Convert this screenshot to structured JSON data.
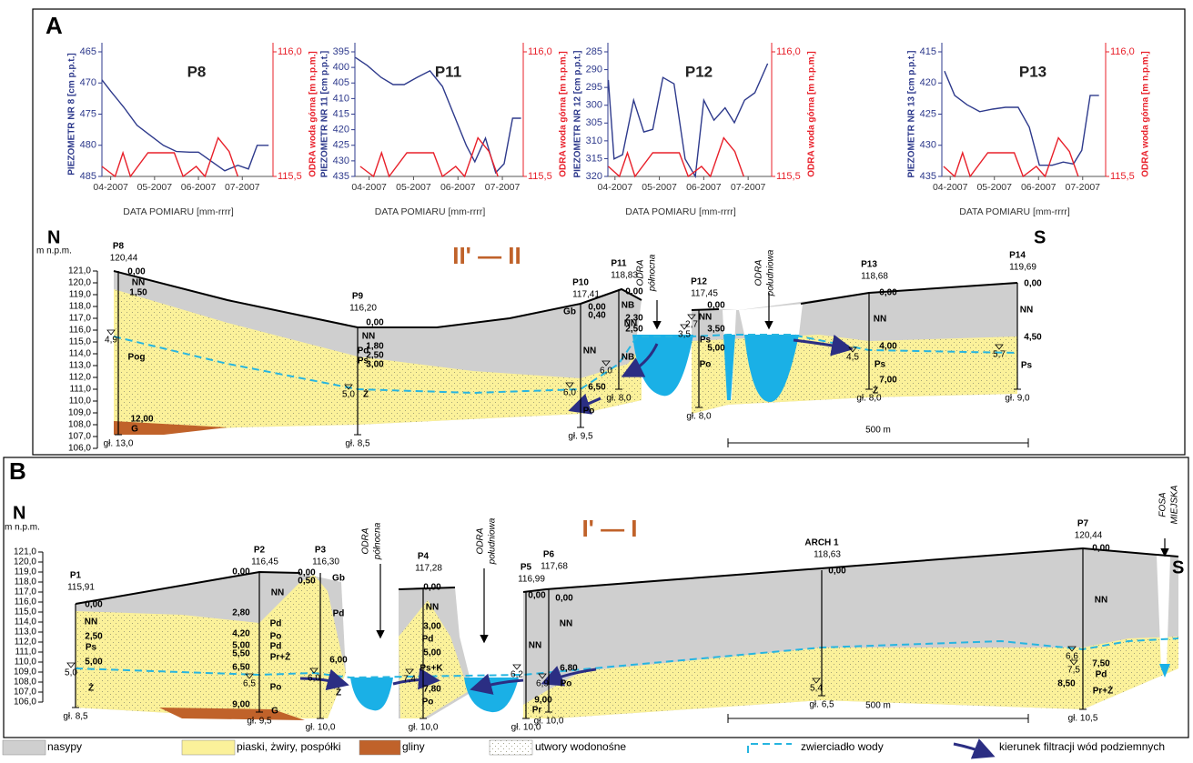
{
  "chart_data": [
    {
      "type": "line",
      "title": "P8",
      "y_label": "PIEZOMETR NR 8 [cm p.p.t.]",
      "y2_label": "ODRA woda górna [m n.p.m.]",
      "x_label": "DATA POMIARU [mm-rrrr]",
      "xlim": [
        -0.2,
        3.7
      ],
      "xticks": [
        {
          "value": 0,
          "label": "04-2007"
        },
        {
          "value": 1,
          "label": "05-2007"
        },
        {
          "value": 2,
          "label": "06-2007"
        },
        {
          "value": 3,
          "label": "07-2007"
        }
      ],
      "ylim": [
        465,
        485
      ],
      "y_inverted": true,
      "yticks": [
        465,
        470,
        475,
        480,
        485
      ],
      "y2lim": [
        115.5,
        116.0
      ],
      "y2ticks": [
        {
          "value": 116.0,
          "label": "116,0"
        },
        {
          "value": 115.5,
          "label": "115,5"
        }
      ],
      "series": [
        {
          "color": "#2e3a8c",
          "x": [
            -0.2,
            0,
            0.3,
            0.6,
            0.9,
            1.2,
            1.5,
            1.8,
            2.0,
            2.3,
            2.6,
            2.9,
            3.14,
            3.34,
            3.6
          ],
          "values": [
            469.5,
            471.3,
            473.9,
            476.8,
            478.4,
            480,
            481,
            481.1,
            481.1,
            482.6,
            484.1,
            483.2,
            483.8,
            480,
            480
          ]
        },
        {
          "color": "#e8202a",
          "axis": "y2",
          "x": [
            -0.2,
            0.1,
            0.28,
            0.45,
            0.85,
            1.45,
            1.65,
            1.95,
            2.15,
            2.45,
            2.7,
            2.9
          ],
          "values": [
            115.54,
            115.5,
            115.595,
            115.5,
            115.595,
            115.595,
            115.5,
            115.54,
            115.5,
            115.655,
            115.6,
            115.5
          ]
        }
      ]
    },
    {
      "type": "line",
      "title": "P11",
      "y_label": "PIEZOMETR NR 11 [cm p.p.t.]",
      "y2_label": "ODRA woda górna [m n.p.m.]",
      "x_label": "DATA POMIARU [mm-rrrr]",
      "xlim": [
        -0.32,
        3.47
      ],
      "xticks": [
        {
          "value": 0,
          "label": "04-2007"
        },
        {
          "value": 1,
          "label": "05-2007"
        },
        {
          "value": 2,
          "label": "06-2007"
        },
        {
          "value": 3,
          "label": "07-2007"
        }
      ],
      "ylim": [
        395,
        435
      ],
      "y_inverted": true,
      "yticks": [
        395,
        400,
        405,
        410,
        415,
        420,
        425,
        430,
        435
      ],
      "y2lim": [
        115.5,
        116.0
      ],
      "y2ticks": [
        {
          "value": 116.0,
          "label": "116,0"
        },
        {
          "value": 115.5,
          "label": "115,5"
        }
      ],
      "series": [
        {
          "color": "#2e3a8c",
          "x": [
            -0.31,
            -0.04,
            0.27,
            0.54,
            0.79,
            1.08,
            1.37,
            1.65,
            1.94,
            2.19,
            2.38,
            2.62,
            2.85,
            3.04,
            3.23,
            3.42
          ],
          "values": [
            396.8,
            399.4,
            403.2,
            405.5,
            405.5,
            403.2,
            401.1,
            406.1,
            416.3,
            425.1,
            430.3,
            422.7,
            433.8,
            430.9,
            416.3,
            416.3
          ]
        },
        {
          "color": "#e8202a",
          "axis": "y2",
          "x": [
            -0.2,
            0.1,
            0.28,
            0.45,
            0.85,
            1.45,
            1.65,
            1.95,
            2.15,
            2.45,
            2.7,
            2.9
          ],
          "values": [
            115.54,
            115.5,
            115.595,
            115.5,
            115.595,
            115.595,
            115.5,
            115.54,
            115.5,
            115.655,
            115.6,
            115.5
          ]
        }
      ]
    },
    {
      "type": "line",
      "title": "P12",
      "y_label": "PIEZOMETR NR 12 [cm p.p.t.]",
      "y2_label": "ODRA woda górna [m n.p.m.]",
      "x_label": "DATA POMIARU [mm-rrrr]",
      "xlim": [
        -0.16,
        3.53
      ],
      "xticks": [
        {
          "value": 0,
          "label": "04-2007"
        },
        {
          "value": 1,
          "label": "05-2007"
        },
        {
          "value": 2,
          "label": "06-2007"
        },
        {
          "value": 3,
          "label": "07-2007"
        }
      ],
      "ylim": [
        285,
        320
      ],
      "y_inverted": true,
      "yticks": [
        285,
        290,
        295,
        300,
        305,
        310,
        315,
        320
      ],
      "y2lim": [
        115.5,
        116.0
      ],
      "y2ticks": [
        {
          "value": 116.0,
          "label": "116,0"
        },
        {
          "value": 115.5,
          "label": "115,5"
        }
      ],
      "series": [
        {
          "color": "#2e3a8c",
          "x": [
            -0.15,
            -0.02,
            0.17,
            0.42,
            0.65,
            0.85,
            1.08,
            1.33,
            1.58,
            1.81,
            2.0,
            2.23,
            2.48,
            2.69,
            2.92,
            3.15,
            3.44
          ],
          "values": [
            292.9,
            315.1,
            313.9,
            298.6,
            307.5,
            306.8,
            292.2,
            294,
            315.1,
            320,
            298.6,
            304.2,
            300.7,
            304.9,
            298.6,
            296.5,
            288.3
          ]
        },
        {
          "color": "#e8202a",
          "axis": "y2",
          "x": [
            -0.15,
            0.1,
            0.28,
            0.45,
            0.85,
            1.45,
            1.65,
            1.95,
            2.15,
            2.45,
            2.7,
            2.9
          ],
          "values": [
            115.54,
            115.5,
            115.595,
            115.5,
            115.595,
            115.595,
            115.5,
            115.54,
            115.5,
            115.655,
            115.6,
            115.5
          ]
        }
      ]
    },
    {
      "type": "line",
      "title": "P13",
      "y_label": "PIEZOMETR NR 13 [cm p.p.t.]",
      "y2_label": "ODRA woda górna [m n.p.m.]",
      "x_label": "DATA POMIARU [mm-rrrr]",
      "xlim": [
        -0.19,
        3.52
      ],
      "xticks": [
        {
          "value": 0,
          "label": "04-2007"
        },
        {
          "value": 1,
          "label": "05-2007"
        },
        {
          "value": 2,
          "label": "06-2007"
        },
        {
          "value": 3,
          "label": "07-2007"
        }
      ],
      "ylim": [
        415,
        435
      ],
      "y_inverted": true,
      "yticks": [
        415,
        420,
        425,
        430,
        435
      ],
      "y2lim": [
        115.5,
        116.0
      ],
      "y2ticks": [
        {
          "value": 116.0,
          "label": "116,0"
        },
        {
          "value": 115.5,
          "label": "115,5"
        }
      ],
      "series": [
        {
          "color": "#2e3a8c",
          "x": [
            -0.13,
            0.1,
            0.38,
            0.67,
            0.96,
            1.25,
            1.54,
            1.79,
            2.02,
            2.31,
            2.56,
            2.79,
            2.98,
            3.17,
            3.37
          ],
          "values": [
            418.1,
            422,
            423.5,
            424.6,
            424.2,
            423.9,
            423.9,
            427.1,
            433.2,
            433.2,
            432.7,
            433,
            430.8,
            422,
            422
          ]
        },
        {
          "color": "#e8202a",
          "axis": "y2",
          "x": [
            -0.15,
            0.1,
            0.28,
            0.45,
            0.85,
            1.45,
            1.65,
            1.95,
            2.15,
            2.45,
            2.7,
            2.9
          ],
          "values": [
            115.54,
            115.5,
            115.595,
            115.5,
            115.595,
            115.595,
            115.5,
            115.54,
            115.5,
            115.655,
            115.6,
            115.5
          ]
        }
      ]
    }
  ],
  "section_a": {
    "label": "A",
    "title": "II' — II",
    "north": "N",
    "south": "S",
    "unit": "m n.p.m.",
    "elev_ticks": [
      "121,0",
      "120,0",
      "119,0",
      "118,0",
      "117,0",
      "116,0",
      "115,0",
      "114,0",
      "113,0",
      "112,0",
      "111,0",
      "110,0",
      "109,0",
      "108,0",
      "107,0",
      "106,0"
    ],
    "wells": [
      {
        "name": "P8",
        "elevation": "120,44",
        "bottom": "gł. 13,0",
        "water": [
          "4,9"
        ]
      },
      {
        "name": "P9",
        "elevation": "116,20",
        "bottom": "gł. 8,5",
        "water": [
          "5,0"
        ]
      },
      {
        "name": "P10",
        "elevation": "117,41",
        "bottom": "gł. 9,5",
        "water": [
          "6,0"
        ]
      },
      {
        "name": "P11",
        "elevation": "118,83",
        "bottom": "gł. 8,0",
        "water": [
          "6,0"
        ]
      },
      {
        "name": "P12",
        "elevation": "117,45",
        "bottom": "gł. 8,0",
        "water": [
          "2,7",
          "3,5"
        ]
      },
      {
        "name": "P13",
        "elevation": "118,68",
        "bottom": "gł. 8,0",
        "water": [
          "4,5"
        ]
      },
      {
        "name": "P14",
        "elevation": "119,69",
        "bottom": "gł. 9,0",
        "water": [
          "5,7"
        ]
      }
    ],
    "notes": [
      "0,00",
      "NN",
      "1,50",
      "Pog",
      "12,00",
      "G",
      "0,00",
      "NN",
      "1,80",
      "Pd",
      "2,50",
      "Ps",
      "3,00",
      "Ż",
      "Gb",
      "0,00",
      "0,40",
      "NN",
      "6,50",
      "Po",
      "0,00",
      "NB",
      "2,30",
      "NN",
      "2,50",
      "NB",
      "0,00",
      "NN",
      "3,50",
      "Ps",
      "5,00",
      "Po",
      "0,00",
      "NN",
      "4,00",
      "Ps",
      "7,00",
      "Ż",
      "0,00",
      "NN",
      "4,50",
      "Ps"
    ],
    "rivers": [
      [
        "ODRA",
        "północna"
      ],
      [
        "ODRA",
        "południowa"
      ]
    ],
    "scale": "500 m"
  },
  "section_b": {
    "label": "B",
    "title": "I' — I",
    "north": "N",
    "south": "S",
    "unit": "m n.p.m.",
    "elev_ticks": [
      "121,0",
      "120,0",
      "119,0",
      "118,0",
      "117,0",
      "116,0",
      "115,0",
      "114,0",
      "113,0",
      "112,0",
      "111,0",
      "110,0",
      "109,0",
      "108,0",
      "107,0",
      "106,0"
    ],
    "wells": [
      {
        "name": "P1",
        "elevation": "115,91",
        "bottom": "gł. 8,5",
        "water": [
          "5,0"
        ]
      },
      {
        "name": "P2",
        "elevation": "116,45",
        "bottom": "gł. 9,5",
        "water": [
          "6,5"
        ]
      },
      {
        "name": "P3",
        "elevation": "116,30",
        "bottom": "gł. 10,0",
        "water": [
          "6,0"
        ]
      },
      {
        "name": "P4",
        "elevation": "117,28",
        "bottom": "gł. 10,0",
        "water": [
          "7,4"
        ]
      },
      {
        "name": "P5",
        "elevation": "116,99",
        "bottom": "gł. 10,0",
        "water": [
          "6,2"
        ]
      },
      {
        "name": "P6",
        "elevation": "117,68",
        "bottom": "gł. 10,0",
        "water": [
          "6,9"
        ]
      },
      {
        "name": "ARCH 1",
        "elevation": "118,63",
        "bottom": "gł. 6,5",
        "water": [
          "5,4"
        ]
      },
      {
        "name": "P7",
        "elevation": "120,44",
        "bottom": "gł. 10,5",
        "water": [
          "6,6",
          "7,5"
        ]
      }
    ],
    "notes": [
      "0,00",
      "NN",
      "2,50",
      "Ps",
      "5,00",
      "Ż",
      "0,00",
      "2,80",
      "4,20",
      "5,00",
      "5,50",
      "6,50",
      "9,00",
      "NN",
      "Pd",
      "Po",
      "Pd",
      "Pr+Ż",
      "Po",
      "G",
      "0,00",
      "0,50",
      "Gb",
      "Pd",
      "6,00",
      "Ż",
      "0,00",
      "NN",
      "3,00",
      "Pd",
      "5,00",
      "Ps+K",
      "7,80",
      "Po",
      "0,00",
      "NN",
      "9,00",
      "Pr",
      "0,00",
      "NN",
      "6,80",
      "Po",
      "0,00",
      "0,00",
      "NN",
      "7,50",
      "Pd",
      "8,50",
      "Pr+Ż"
    ],
    "rivers": [
      [
        "ODRA",
        "północna"
      ],
      [
        "ODRA",
        "południowa"
      ],
      [
        "FOSA",
        "MIEJSKA"
      ]
    ],
    "scale": "500 m"
  },
  "legend": [
    "nasypy",
    "piaski, żwiry, pospółki",
    "gliny",
    "utwory wodonośne",
    "zwierciadło wody",
    "kierunek filtracji wód podziemnych"
  ]
}
